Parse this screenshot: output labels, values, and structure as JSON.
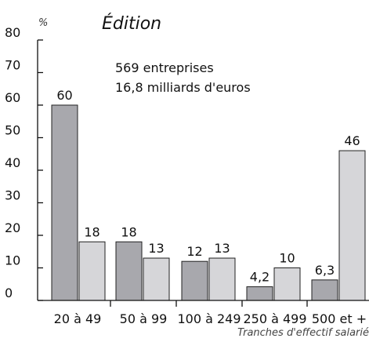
{
  "chart_data": {
    "type": "bar",
    "title": "Édition",
    "ylabel": "%",
    "xlabel": "Tranches d'effectif salarié",
    "categories": [
      "20 à 49",
      "50 à 99",
      "100 à 249",
      "250 à 499",
      "500 et +"
    ],
    "series": [
      {
        "name": "",
        "color": "#a8a8ad",
        "values": [
          60,
          18,
          12,
          4.2,
          6.3
        ],
        "labels": [
          "60",
          "18",
          "12",
          "4,2",
          "6,3"
        ]
      },
      {
        "name": "",
        "color": "#d6d6d9",
        "values": [
          18,
          13,
          13,
          10,
          46
        ],
        "labels": [
          "18",
          "13",
          "13",
          "10",
          "46"
        ]
      }
    ],
    "ylim": [
      0,
      80
    ],
    "yticks": [
      0,
      10,
      20,
      30,
      40,
      50,
      60,
      70,
      80
    ],
    "annotations": [
      "569 entreprises",
      "16,8 milliards d'euros"
    ],
    "grid": false
  }
}
